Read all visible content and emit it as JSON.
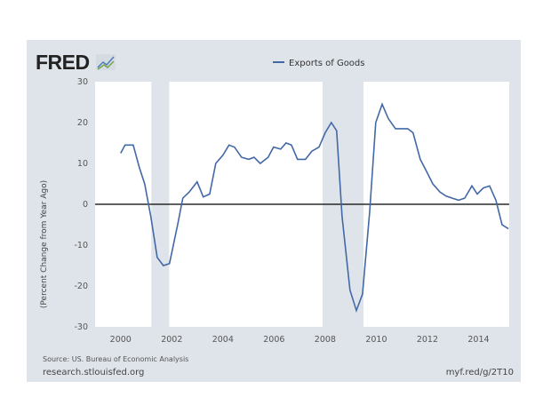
{
  "logo": "FRED",
  "source": "Source: US. Bureau of Economic Analysis",
  "site": "research.stlouisfed.org",
  "short_url": "myf.red/g/2T10",
  "chart_data": {
    "type": "line",
    "title": "",
    "xlabel": "",
    "ylabel": "(Percent Change from Year Ago)",
    "xlim": [
      1999.0,
      2015.2
    ],
    "ylim": [
      -30,
      30
    ],
    "yticks": [
      30,
      20,
      10,
      0,
      -10,
      -20,
      -30
    ],
    "xticks": [
      2000,
      2002,
      2004,
      2006,
      2008,
      2010,
      2012,
      2014
    ],
    "legend": {
      "position": "top-center",
      "entries": [
        "Exports of Goods"
      ]
    },
    "line_color": "#4269a5",
    "recession_color": "#dfe4ea",
    "recessions": [
      [
        2001.2,
        2001.9
      ],
      [
        2007.9,
        2009.5
      ]
    ],
    "zero_line": true,
    "series": [
      {
        "name": "Exports of Goods",
        "x": [
          2000.0,
          2000.17,
          2000.49,
          2000.73,
          2000.94,
          2001.18,
          2001.43,
          2001.67,
          2001.91,
          2002.23,
          2002.43,
          2002.68,
          2002.99,
          2003.23,
          2003.48,
          2003.72,
          2004.0,
          2004.24,
          2004.45,
          2004.73,
          2005.01,
          2005.22,
          2005.46,
          2005.77,
          2005.98,
          2006.26,
          2006.47,
          2006.68,
          2006.92,
          2007.23,
          2007.48,
          2007.76,
          2008.0,
          2008.24,
          2008.45,
          2008.66,
          2008.97,
          2009.22,
          2009.46,
          2009.74,
          2009.98,
          2010.23,
          2010.47,
          2010.75,
          2010.99,
          2011.23,
          2011.44,
          2011.72,
          2011.97,
          2012.21,
          2012.49,
          2012.73,
          2012.97,
          2013.22,
          2013.46,
          2013.74,
          2013.95,
          2014.19,
          2014.43,
          2014.68,
          2014.92,
          2015.17
        ],
        "values": [
          12.5,
          14.5,
          14.5,
          9,
          5,
          -3,
          -13,
          -15,
          -14.5,
          -5,
          1.5,
          3,
          5.5,
          1.8,
          2.5,
          10,
          12,
          14.5,
          14,
          11.5,
          11,
          11.5,
          10,
          11.5,
          14,
          13.5,
          15,
          14.5,
          11,
          11,
          13,
          14,
          17.5,
          20,
          18,
          -3,
          -21,
          -26,
          -22,
          -2,
          20,
          24.5,
          21,
          18.5,
          18.5,
          18.5,
          17.5,
          11,
          8,
          5,
          3,
          2,
          1.5,
          1,
          1.5,
          4.5,
          2.5,
          4,
          4.5,
          1,
          -5,
          -6
        ]
      }
    ]
  }
}
